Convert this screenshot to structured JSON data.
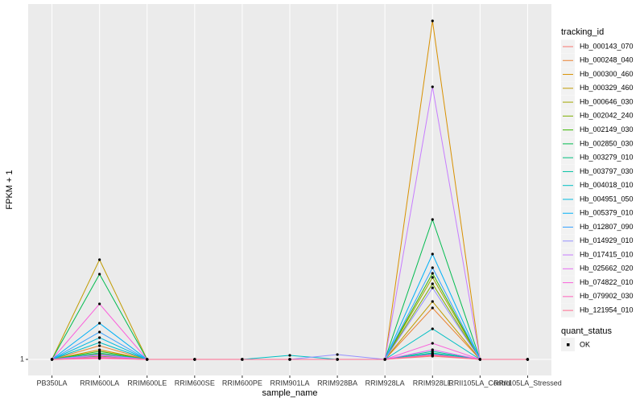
{
  "chart_data": {
    "type": "line",
    "x_label": "sample_name",
    "y_label": "FPKM + 1",
    "legend_title": "tracking_id",
    "point_legend_title": "quant_status",
    "point_legend_label": "OK",
    "categories": [
      "PB350LA",
      "RRIM600LA",
      "RRIM600LE",
      "RRIM600SE",
      "RRIM600PE",
      "RRIM901LA",
      "RRIM928BA",
      "RRIM928LA",
      "RRIM928LE",
      "RRII105LA_Control",
      "RRII105LA_Stressed"
    ],
    "ylim": [
      0,
      23.1
    ],
    "yticks": [
      1
    ],
    "grid": true,
    "series": [
      {
        "name": "Hb_000143_070",
        "color": "#F8766D",
        "values": [
          1,
          1.1,
          1,
          1,
          1,
          1,
          1,
          1,
          1.2,
          1,
          1
        ]
      },
      {
        "name": "Hb_000248_040",
        "color": "#EA8331",
        "values": [
          1,
          1.85,
          1,
          1,
          1,
          1,
          1,
          1,
          4.2,
          1,
          1
        ]
      },
      {
        "name": "Hb_000300_460",
        "color": "#D89000",
        "values": [
          1,
          1.6,
          1,
          1,
          1,
          1,
          1,
          1,
          22.05,
          1,
          1
        ]
      },
      {
        "name": "Hb_000329_460",
        "color": "#C09B00",
        "values": [
          1,
          7.2,
          1,
          1,
          1,
          1,
          1,
          1,
          4.6,
          1,
          1
        ]
      },
      {
        "name": "Hb_000646_030",
        "color": "#A3A500",
        "values": [
          1,
          1.35,
          1,
          1,
          1,
          1,
          1,
          1,
          6.1,
          1,
          1
        ]
      },
      {
        "name": "Hb_002042_240",
        "color": "#7CAE00",
        "values": [
          1,
          1.2,
          1,
          1,
          1,
          1,
          1,
          1,
          5.7,
          1,
          1
        ]
      },
      {
        "name": "Hb_002149_030",
        "color": "#39B600",
        "values": [
          1,
          1.5,
          1,
          1,
          1,
          1,
          1,
          1,
          6.35,
          1,
          1
        ]
      },
      {
        "name": "Hb_002850_030",
        "color": "#00BB4E",
        "values": [
          1,
          6.3,
          1,
          1,
          1,
          1,
          1,
          1,
          9.7,
          1,
          1
        ]
      },
      {
        "name": "Hb_003279_010",
        "color": "#00BF7D",
        "values": [
          1,
          1.3,
          1,
          1,
          1,
          1,
          1,
          1,
          1.4,
          1,
          1
        ]
      },
      {
        "name": "Hb_003797_030",
        "color": "#00C1A3",
        "values": [
          1,
          1.4,
          1,
          1,
          1,
          1,
          1,
          1,
          1.5,
          1,
          1
        ]
      },
      {
        "name": "Hb_004018_010",
        "color": "#00BFC4",
        "values": [
          1,
          2.05,
          1,
          1,
          1,
          1.25,
          1,
          1,
          2.9,
          1,
          1
        ]
      },
      {
        "name": "Hb_004951_050",
        "color": "#00BAE0",
        "values": [
          1,
          2.35,
          1,
          1,
          1,
          1,
          1,
          1,
          1.35,
          1,
          1
        ]
      },
      {
        "name": "Hb_005379_010",
        "color": "#00B0F6",
        "values": [
          1,
          3.25,
          1,
          1,
          1,
          1,
          1,
          1,
          7.55,
          1,
          1
        ]
      },
      {
        "name": "Hb_012807_090",
        "color": "#35A2FF",
        "values": [
          1,
          2.7,
          1,
          1,
          1,
          1,
          1,
          1,
          6.7,
          1,
          1
        ]
      },
      {
        "name": "Hb_014929_010",
        "color": "#9590FF",
        "values": [
          1,
          1.3,
          1,
          1,
          1,
          1,
          1.3,
          1,
          5.45,
          1,
          1
        ]
      },
      {
        "name": "Hb_017415_010",
        "color": "#C77CFF",
        "values": [
          1,
          1.25,
          1,
          1,
          1,
          1,
          1,
          1,
          17.95,
          1,
          1
        ]
      },
      {
        "name": "Hb_025662_020",
        "color": "#E76BF3",
        "values": [
          1,
          1.15,
          1,
          1,
          1,
          1,
          1,
          1,
          1.6,
          1,
          1
        ]
      },
      {
        "name": "Hb_074822_010",
        "color": "#FA62DB",
        "values": [
          1,
          4.45,
          1,
          1,
          1,
          1,
          1,
          1,
          2.0,
          1,
          1
        ]
      },
      {
        "name": "Hb_079902_030",
        "color": "#FF62BC",
        "values": [
          1,
          1.05,
          1,
          1,
          1,
          1,
          1,
          1,
          1.3,
          1,
          1
        ]
      },
      {
        "name": "Hb_121954_010",
        "color": "#FF6C90",
        "values": [
          1,
          1.1,
          1,
          1,
          1,
          1,
          1,
          1,
          1.25,
          1,
          1
        ]
      }
    ]
  }
}
